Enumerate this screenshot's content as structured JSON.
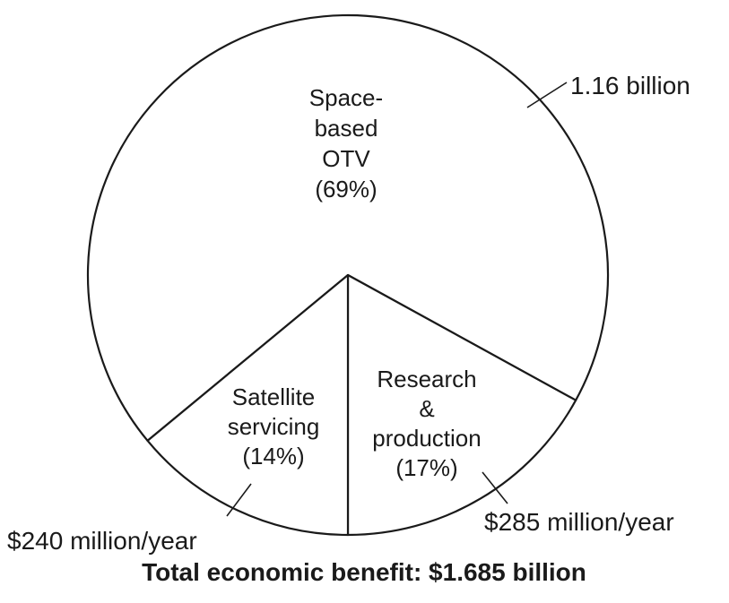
{
  "chart_data": {
    "type": "pie",
    "title": "Total economic benefit: $1.685 billion",
    "slices": [
      {
        "label_lines": [
          "Space-",
          "based",
          "OTV",
          "(69%)"
        ],
        "percent": 69,
        "value_label": "1.16 billion"
      },
      {
        "label_lines": [
          "Research",
          "&",
          "production",
          "(17%)"
        ],
        "percent": 17,
        "value_label": "$285 million/year"
      },
      {
        "label_lines": [
          "Satellite",
          "servicing",
          "(14%)"
        ],
        "percent": 14,
        "value_label": "$240 million/year"
      }
    ],
    "colors": {
      "stroke": "#1a1a1a",
      "fill": "#ffffff"
    }
  }
}
